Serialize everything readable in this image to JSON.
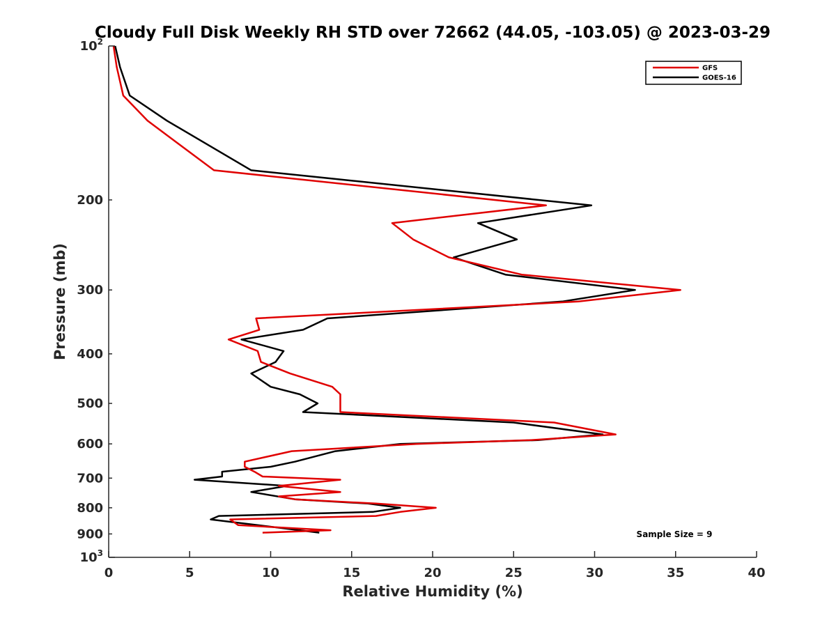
{
  "chart_data": {
    "type": "line",
    "title": "Cloudy Full Disk Weekly RH STD over 72662 (44.05, -103.05) @ 2023-03-29",
    "xlabel": "Relative Humidity (%)",
    "ylabel": "Pressure (mb)",
    "xlim": [
      0,
      40
    ],
    "ylim": [
      100,
      1000
    ],
    "y_scale": "log",
    "y_reversed": true,
    "x_ticks": [
      0,
      5,
      10,
      15,
      20,
      25,
      30,
      35,
      40
    ],
    "y_ticks": [
      {
        "value": 100,
        "label": "10",
        "exp": "2"
      },
      {
        "value": 200,
        "label": "200"
      },
      {
        "value": 300,
        "label": "300"
      },
      {
        "value": 400,
        "label": "400"
      },
      {
        "value": 500,
        "label": "500"
      },
      {
        "value": 600,
        "label": "600"
      },
      {
        "value": 700,
        "label": "700"
      },
      {
        "value": 800,
        "label": "800"
      },
      {
        "value": 900,
        "label": "900"
      },
      {
        "value": 1000,
        "label": "10",
        "exp": "3"
      }
    ],
    "grid": false,
    "legend_position": "top-right",
    "annotation": "Sample Size = 9",
    "series": [
      {
        "name": "GFS",
        "color": "#e00000",
        "points": [
          [
            0.3,
            100
          ],
          [
            0.5,
            110
          ],
          [
            0.9,
            125
          ],
          [
            2.4,
            140
          ],
          [
            6.5,
            175
          ],
          [
            27,
            205
          ],
          [
            17.5,
            222
          ],
          [
            18.8,
            239
          ],
          [
            21,
            259
          ],
          [
            25.5,
            280
          ],
          [
            35.3,
            300
          ],
          [
            29,
            316
          ],
          [
            9.1,
            341
          ],
          [
            9.3,
            359
          ],
          [
            7.4,
            375
          ],
          [
            9.2,
            395
          ],
          [
            9.4,
            415
          ],
          [
            11.2,
            437
          ],
          [
            13.8,
            464
          ],
          [
            14.3,
            480
          ],
          [
            14.3,
            520
          ],
          [
            27.5,
            545
          ],
          [
            31.3,
            575
          ],
          [
            26,
            590
          ],
          [
            19,
            600
          ],
          [
            11.3,
            620
          ],
          [
            8.4,
            650
          ],
          [
            8.4,
            665
          ],
          [
            9.0,
            680
          ],
          [
            9.5,
            695
          ],
          [
            14.3,
            705
          ],
          [
            10.5,
            725
          ],
          [
            14.3,
            745
          ],
          [
            10.5,
            760
          ],
          [
            11.5,
            770
          ],
          [
            16.5,
            785
          ],
          [
            20.2,
            800
          ],
          [
            18.0,
            815
          ],
          [
            16.5,
            830
          ],
          [
            7.5,
            843
          ],
          [
            8.0,
            865
          ],
          [
            13.7,
            885
          ],
          [
            9.5,
            895
          ]
        ]
      },
      {
        "name": "GOES-16",
        "color": "#000000",
        "points": [
          [
            0.4,
            100
          ],
          [
            0.7,
            110
          ],
          [
            1.3,
            125
          ],
          [
            3.6,
            140
          ],
          [
            8.8,
            175
          ],
          [
            29.8,
            205
          ],
          [
            22.8,
            222
          ],
          [
            25.2,
            239
          ],
          [
            21.3,
            259
          ],
          [
            24.5,
            280
          ],
          [
            32.5,
            300
          ],
          [
            28,
            316
          ],
          [
            13.5,
            341
          ],
          [
            12,
            359
          ],
          [
            8.2,
            375
          ],
          [
            10.8,
            395
          ],
          [
            10.3,
            415
          ],
          [
            8.8,
            437
          ],
          [
            10.0,
            464
          ],
          [
            11.8,
            480
          ],
          [
            12.9,
            500
          ],
          [
            12.0,
            520
          ],
          [
            25,
            545
          ],
          [
            30.5,
            575
          ],
          [
            26.5,
            590
          ],
          [
            18,
            600
          ],
          [
            14,
            620
          ],
          [
            11.5,
            650
          ],
          [
            10.0,
            665
          ],
          [
            7.0,
            680
          ],
          [
            7.0,
            695
          ],
          [
            5.3,
            705
          ],
          [
            11.0,
            725
          ],
          [
            8.8,
            745
          ],
          [
            11.5,
            770
          ],
          [
            16.0,
            785
          ],
          [
            18.0,
            800
          ],
          [
            16.3,
            815
          ],
          [
            6.8,
            830
          ],
          [
            6.3,
            843
          ],
          [
            13.0,
            895
          ]
        ]
      }
    ]
  }
}
